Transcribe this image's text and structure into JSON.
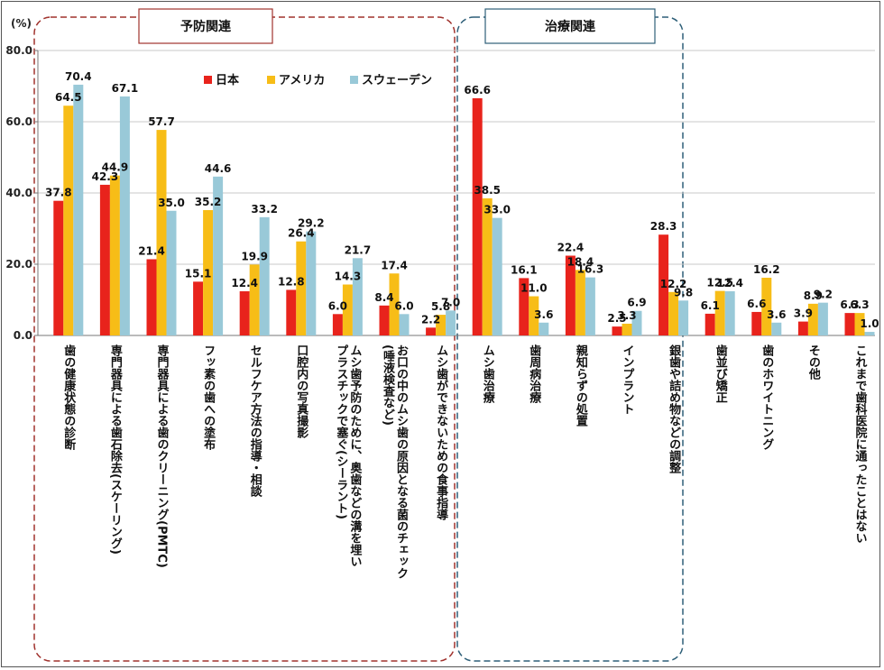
{
  "chart_data": {
    "type": "bar",
    "unit_label": "(%)",
    "ylim": [
      0,
      80
    ],
    "yticks": [
      "0.0",
      "20.0",
      "40.0",
      "60.0",
      "80.0"
    ],
    "grid": true,
    "legend": "top",
    "series": [
      {
        "name": "日本",
        "color": "#e8231c",
        "values": [
          37.8,
          42.3,
          21.4,
          15.1,
          12.4,
          12.8,
          6.0,
          8.4,
          2.2,
          66.6,
          16.1,
          22.4,
          2.5,
          28.3,
          6.1,
          6.6,
          3.9,
          6.3
        ]
      },
      {
        "name": "アメリカ",
        "color": "#f7bd17",
        "values": [
          64.5,
          44.9,
          57.7,
          35.2,
          19.9,
          26.4,
          14.3,
          17.4,
          5.8,
          38.5,
          11.0,
          18.4,
          3.3,
          12.2,
          12.5,
          16.2,
          8.9,
          6.3
        ]
      },
      {
        "name": "スウェーデン",
        "color": "#99c9d8",
        "values": [
          70.4,
          67.1,
          35.0,
          44.6,
          33.2,
          29.2,
          21.7,
          6.0,
          7.0,
          33.0,
          3.6,
          16.3,
          6.9,
          9.8,
          12.4,
          3.6,
          9.2,
          1.0
        ]
      }
    ],
    "value_labels": [
      [
        "37.8",
        "42.3",
        "21.4",
        "15.1",
        "12.4",
        "12.8",
        "6.0",
        "8.4",
        "2.2",
        "66.6",
        "16.1",
        "22.4",
        "2.5",
        "28.3",
        "6.1",
        "6.6",
        "3.9",
        "6.3"
      ],
      [
        "64.5",
        "44.9",
        "57.7",
        "35.2",
        "19.9",
        "26.4",
        "14.3",
        "17.4",
        "5.8",
        "38.5",
        "11.0",
        "18.4",
        "3.3",
        "12.2",
        "12.5",
        "16.2",
        "8.9",
        "6.3"
      ],
      [
        "70.4",
        "67.1",
        "35.0",
        "44.6",
        "33.2",
        "29.2",
        "21.7",
        "6.0",
        "7.0",
        "33.0",
        "3.6",
        "16.3",
        "6.9",
        "9.8",
        "12.4",
        "3.6",
        "9.2",
        "1.0"
      ]
    ],
    "categories": [
      "歯の健康状態の診断",
      "専門器具による歯石除去(スケーリング)",
      "専門器具による歯のクリーニング(PMTC)",
      "フッ素の歯への塗布",
      "セルフケア方法の指導・相談",
      "口腔内の写真撮影",
      "ムシ歯予防のために、奥歯などの溝を埋い\nプラスチックで塞ぐ(シーラント)",
      "お口の中のムシ歯の原因となる菌のチェック\n(唾液検査など)",
      "ムシ歯ができないための食事指導",
      "ムシ歯治療",
      "歯周病治療",
      "親知らずの処置",
      "インプラント",
      "銀歯や詰め物などの調整",
      "歯並び矯正",
      "歯のホワイトニング",
      "その他",
      "これまで歯科医院に通ったことはない"
    ],
    "groups": [
      {
        "title": "予防関連",
        "border_color": "#a0322d"
      },
      {
        "title": "治療関連",
        "border_color": "#2e5f78"
      }
    ]
  }
}
